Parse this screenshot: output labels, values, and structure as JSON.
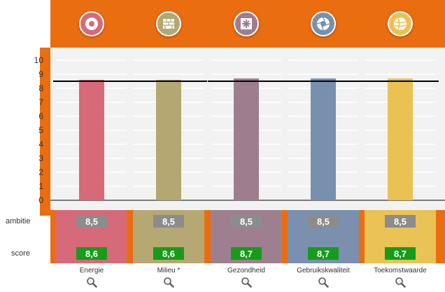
{
  "colors": {
    "orange": "#ea6d10",
    "chart_bg": "#f2f2f2",
    "ambition_pill": "#8c8c8c",
    "score_pill": "#169c1a"
  },
  "rows": {
    "ambition_label": "ambitie",
    "score_label": "score"
  },
  "categories": [
    {
      "name": "Energie",
      "icon": "flower-icon",
      "color": "#d66a77",
      "panel_color": "#d76a78",
      "ambition_text": "8,5",
      "score_text": "8,6"
    },
    {
      "name": "Milieu *",
      "icon": "brick-wall-icon",
      "color": "#b3a772",
      "panel_color": "#b6a872",
      "ambition_text": "8,5",
      "score_text": "8,6"
    },
    {
      "name": "Gezondheid",
      "icon": "cross-emblem-icon",
      "color": "#9e7e8e",
      "panel_color": "#9d7f8f",
      "ambition_text": "8,5",
      "score_text": "8,7"
    },
    {
      "name": "Gebruikskwaliteit",
      "icon": "aperture-icon",
      "color": "#7890ad",
      "panel_color": "#7a90ae",
      "ambition_text": "8,5",
      "score_text": "8,7"
    },
    {
      "name": "Toekomstwaarde",
      "icon": "globe-icon",
      "color": "#e9c253",
      "panel_color": "#eac356",
      "ambition_text": "8,5",
      "score_text": "8,7"
    }
  ],
  "chart_data": {
    "type": "bar",
    "categories": [
      "Energie",
      "Milieu *",
      "Gezondheid",
      "Gebruikskwaliteit",
      "Toekomstwaarde"
    ],
    "series": [
      {
        "name": "score",
        "values": [
          8.6,
          8.6,
          8.7,
          8.7,
          8.7
        ]
      },
      {
        "name": "ambitie",
        "values": [
          8.5,
          8.5,
          8.5,
          8.5,
          8.5
        ],
        "style": "line"
      }
    ],
    "ylim": [
      0,
      10
    ],
    "yticks": [
      "0",
      "1",
      "2",
      "3",
      "4",
      "5",
      "6",
      "7",
      "8",
      "9",
      "10"
    ],
    "grid": true,
    "title": "",
    "xlabel": "",
    "ylabel": ""
  }
}
